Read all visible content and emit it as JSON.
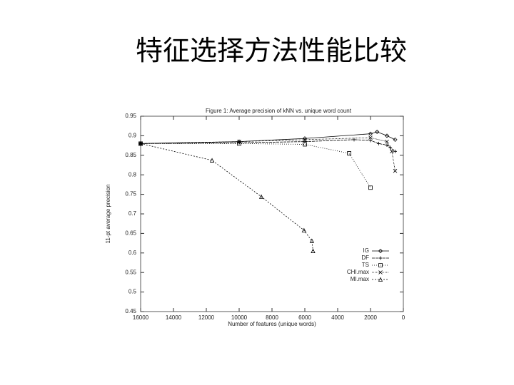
{
  "slide": {
    "title": "特征选择方法性能比较"
  },
  "chart_data": {
    "type": "line",
    "title": "Figure 1: Average precision of kNN vs. unique word count",
    "xlabel": "Number of features (unique words)",
    "ylabel": "11-pt average precision",
    "xlim": [
      16000,
      0
    ],
    "xticks": [
      16000,
      14000,
      12000,
      10000,
      8000,
      6000,
      4000,
      2000,
      0
    ],
    "ylim": [
      0.45,
      0.95
    ],
    "yticks": [
      0.45,
      0.5,
      0.55,
      0.6,
      0.65,
      0.7,
      0.75,
      0.8,
      0.85,
      0.9,
      0.95
    ],
    "legend": "lower right",
    "series": [
      {
        "name": "IG",
        "color": "#000000",
        "x": [
          16000,
          10000,
          6000,
          2000,
          1600,
          1000,
          500
        ],
        "values": [
          0.88,
          0.885,
          0.893,
          0.905,
          0.91,
          0.9,
          0.89
        ]
      },
      {
        "name": "DF",
        "color": "#000000",
        "x": [
          16000,
          10000,
          6000,
          3000,
          2000,
          1500,
          1000,
          800,
          500
        ],
        "values": [
          0.88,
          0.882,
          0.885,
          0.89,
          0.888,
          0.88,
          0.876,
          0.87,
          0.86
        ]
      },
      {
        "name": "TS",
        "color": "#000000",
        "x": [
          16000,
          10000,
          6000,
          3300,
          2000
        ],
        "values": [
          0.88,
          0.88,
          0.878,
          0.855,
          0.767
        ]
      },
      {
        "name": "CHI.max",
        "color": "#000000",
        "x": [
          16000,
          10000,
          6000,
          2000,
          1000,
          700,
          500
        ],
        "values": [
          0.88,
          0.885,
          0.89,
          0.895,
          0.885,
          0.86,
          0.81
        ]
      },
      {
        "name": "MI.max",
        "color": "#000000",
        "x": [
          16000,
          11650,
          8650,
          6050,
          5570,
          5500
        ],
        "values": [
          0.88,
          0.837,
          0.744,
          0.658,
          0.631,
          0.605
        ]
      }
    ]
  }
}
